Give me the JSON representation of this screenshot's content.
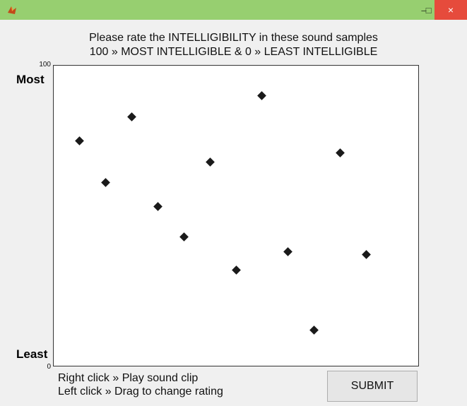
{
  "window": {
    "minimize_glyph": "–",
    "maximize_glyph": "□",
    "close_glyph": "×",
    "close_color": "#e64b3c",
    "titlebar_color": "#97cf70",
    "app_icon": "matlab-icon"
  },
  "instructions": {
    "line1": "Please rate the INTELLIGIBILITY in these sound samples",
    "line2": "100 » MOST INTELLIGIBLE & 0 » LEAST INTELLIGIBLE"
  },
  "scale": {
    "top_tick": "100",
    "bottom_tick": "0",
    "top_label": "Most",
    "bottom_label": "Least"
  },
  "chart_data": {
    "type": "scatter",
    "title": "",
    "xlabel": "",
    "ylabel": "",
    "ylim": [
      0,
      100
    ],
    "xlim": [
      0,
      14
    ],
    "marker": "diamond",
    "x": [
      1,
      2,
      3,
      4,
      5,
      6,
      7,
      8,
      9,
      10,
      11,
      12
    ],
    "y": [
      75,
      61,
      83,
      53,
      43,
      68,
      32,
      90,
      38,
      12,
      71,
      37
    ]
  },
  "help": {
    "line1": "Right click » Play sound clip",
    "line2": "Left click » Drag to change rating"
  },
  "submit_label": "SUBMIT"
}
